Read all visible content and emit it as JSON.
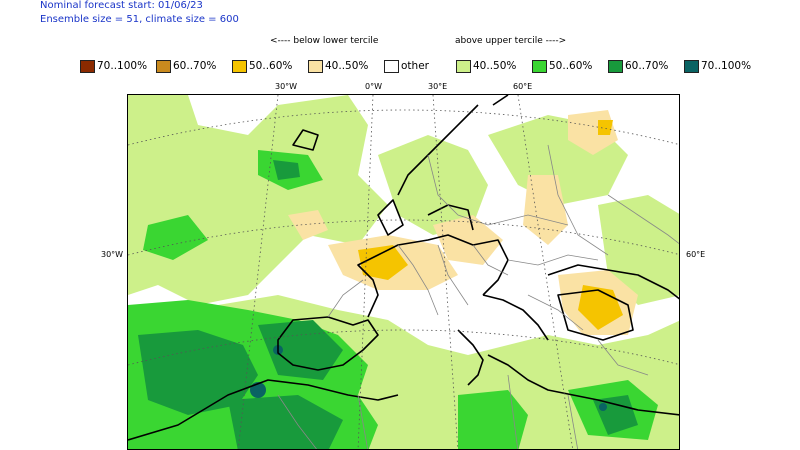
{
  "header": {
    "line1": "Nominal forecast start: 01/06/23",
    "line2": "Ensemble size = 51, climate size = 600"
  },
  "tercile_labels": {
    "below": "<---- below lower tercile",
    "above": "above upper tercile ---->"
  },
  "legend": [
    {
      "label": "70..100%",
      "color": "#8b2a00"
    },
    {
      "label": "60..70%",
      "color": "#c98a1e"
    },
    {
      "label": "50..60%",
      "color": "#f5c400"
    },
    {
      "label": "40..50%",
      "color": "#fae2a4"
    },
    {
      "label": "other",
      "color": "#ffffff"
    },
    {
      "label": "40..50%",
      "color": "#cdf08a"
    },
    {
      "label": "50..60%",
      "color": "#3ad632"
    },
    {
      "label": "60..70%",
      "color": "#189a3c"
    },
    {
      "label": "70..100%",
      "color": "#0a6363"
    }
  ],
  "map": {
    "lon_labels": [
      "30°W",
      "0°W",
      "30°E",
      "60°E"
    ],
    "lat_left": "30°W",
    "lat_right": "60°E"
  }
}
